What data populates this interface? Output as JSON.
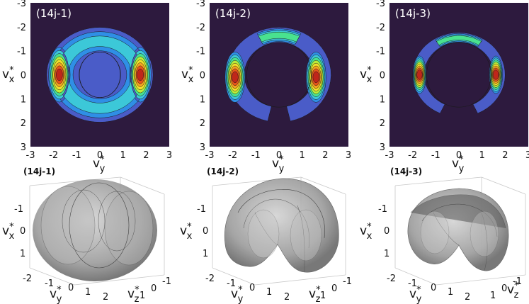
{
  "chart_data": [
    {
      "type": "heatmap",
      "title": "(14j-1)",
      "xlabel": "v",
      "xlabel_sup": "*",
      "xlabel_sub": "y",
      "ylabel": "v",
      "ylabel_sup": "*",
      "ylabel_sub": "x",
      "xlim": [
        -3,
        3
      ],
      "ylim": [
        3,
        -3
      ],
      "xticks": [
        "-3",
        "-2",
        "-1",
        "0",
        "1",
        "2",
        "3"
      ],
      "yticks": [
        "-3",
        "-2",
        "-1",
        "0",
        "1",
        "2",
        "3"
      ],
      "shape": "full-ring",
      "ring_outer_radius": 2.3,
      "ring_inner_radius": 0.95,
      "peaks_vy": [
        -1.75,
        1.75
      ],
      "peak_vx": 0
    },
    {
      "type": "heatmap",
      "title": "(14j-2)",
      "xlabel": "v",
      "xlabel_sup": "*",
      "xlabel_sub": "y",
      "ylabel": "v",
      "ylabel_sup": "*",
      "ylabel_sub": "x",
      "xlim": [
        -3,
        3
      ],
      "ylim": [
        3,
        -3
      ],
      "xticks": [
        "-3",
        "-2",
        "-1",
        "0",
        "1",
        "2",
        "3"
      ],
      "yticks": [
        "-3",
        "-2",
        "-1",
        "0",
        "1",
        "2",
        "3"
      ],
      "shape": "horseshoe",
      "ring_outer_radius": 2.25,
      "ring_inner_radius": 1.5,
      "gap_bottom": true,
      "peaks_vy": [
        -1.9,
        1.6
      ],
      "peak_vx": 0.1
    },
    {
      "type": "heatmap",
      "title": "(14j-3)",
      "xlabel": "v",
      "xlabel_sup": "*",
      "xlabel_sub": "y",
      "ylabel": "v",
      "ylabel_sup": "*",
      "ylabel_sub": "x",
      "xlim": [
        -3,
        3
      ],
      "ylim": [
        3,
        -3
      ],
      "xticks": [
        "-3",
        "-2",
        "-1",
        "0",
        "1",
        "2",
        "3"
      ],
      "yticks": [
        "-3",
        "-2",
        "-1",
        "0",
        "1",
        "2",
        "3"
      ],
      "shape": "narrow-crescent",
      "ring_outer_radius": 2.0,
      "ring_inner_radius": 1.5,
      "gap_bottom": true,
      "peaks_vy": [
        -1.7,
        1.6
      ],
      "peak_vx": 0
    },
    {
      "type": "scatter",
      "subtype": "3d-isosurface",
      "title": "(14j-1)",
      "vx_ticks": [
        "-1",
        "0",
        "1"
      ],
      "vy_ticks": [
        "-2",
        "-1",
        "0",
        "1",
        "2"
      ],
      "vz_ticks": [
        "-1",
        "0",
        "1"
      ],
      "xlabel": "v",
      "xlabel_sup": "*",
      "xlabel_sub": "y",
      "ylabel": "v",
      "ylabel_sup": "*",
      "ylabel_sub": "x",
      "zlabel": "v",
      "zlabel_sup": "*",
      "zlabel_sub": "z",
      "surface_color": "#808080"
    },
    {
      "type": "scatter",
      "subtype": "3d-isosurface",
      "title": "(14j-2)",
      "vx_ticks": [
        "-1",
        "0",
        "1"
      ],
      "vy_ticks": [
        "-2",
        "-1",
        "0",
        "1",
        "2"
      ],
      "vz_ticks": [
        "-1",
        "0",
        "1"
      ],
      "xlabel": "v",
      "xlabel_sup": "*",
      "xlabel_sub": "y",
      "ylabel": "v",
      "ylabel_sup": "*",
      "ylabel_sub": "x",
      "zlabel": "v",
      "zlabel_sup": "*",
      "zlabel_sub": "z",
      "surface_color": "#808080"
    },
    {
      "type": "scatter",
      "subtype": "3d-isosurface",
      "title": "(14j-3)",
      "vx_ticks": [
        "-1",
        "0",
        "1"
      ],
      "vy_ticks": [
        "-2",
        "-1",
        "0",
        "1",
        "2"
      ],
      "vz_ticks": [
        "-1",
        "0",
        "1"
      ],
      "xlabel": "v",
      "xlabel_sup": "*",
      "xlabel_sub": "y",
      "ylabel": "v",
      "ylabel_sup": "*",
      "ylabel_sub": "x",
      "zlabel": "v",
      "zlabel_sup": "*",
      "zlabel_sub": "z",
      "surface_color": "#808080"
    }
  ],
  "colors": {
    "background": "#2d1a3e",
    "levels": [
      "#4a5cc8",
      "#2f8fe6",
      "#3cc8d8",
      "#49e28f",
      "#b9ee3a",
      "#f2df2a",
      "#f4a21f",
      "#e5541a",
      "#c0261a"
    ]
  }
}
